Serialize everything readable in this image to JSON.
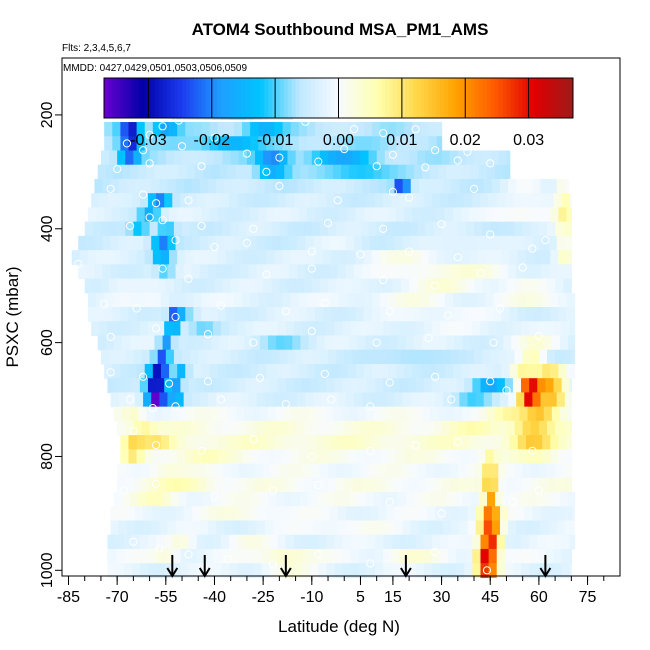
{
  "chart_data": {
    "type": "heatmap",
    "title": "ATOM4 Southbound MSA_PM1_AMS",
    "subtitle_flights": "Flts: 2,3,4,5,6,7",
    "subtitle_dates": "MMDD: 0427,0429,0501,0503,0506,0509",
    "xlabel": "Latitude (deg N)",
    "ylabel": "PSXC (mbar)",
    "xlim": [
      -87,
      85
    ],
    "ylim": [
      1010,
      100
    ],
    "x_ticks": [
      -85,
      -70,
      -55,
      -40,
      -25,
      -10,
      5,
      15,
      30,
      45,
      60,
      75
    ],
    "x_tick_labels": [
      "-85",
      "-70",
      "-55",
      "-40",
      "-25",
      "-10",
      "5",
      "15",
      "30",
      "45",
      "60",
      "75"
    ],
    "y_ticks": [
      200,
      400,
      600,
      800,
      1000
    ],
    "y_tick_labels": [
      "200",
      "400",
      "600",
      "800",
      "1000"
    ],
    "colorbar": {
      "range": [
        -0.037,
        0.037
      ],
      "ticks": [
        -0.03,
        -0.02,
        -0.01,
        0.0,
        0.01,
        0.02,
        0.03
      ],
      "tick_labels": [
        "-0.03",
        "-0.02",
        "-0.01",
        "0.00",
        "0.01",
        "0.02",
        "0.03"
      ],
      "colors": [
        "#6a00d0",
        "#0000a8",
        "#1c3cf0",
        "#1ea0ff",
        "#00c4ff",
        "#bfe8ff",
        "#f7fbff",
        "#ffffb0",
        "#ffd84a",
        "#ffa200",
        "#ff5a00",
        "#e00000",
        "#9e1a1a"
      ]
    },
    "arrow_latitudes": [
      -53,
      -43,
      -18,
      19,
      62
    ],
    "heat_rows": [
      {
        "p": 195,
        "w": 25,
        "x0": -53,
        "x1": -16,
        "base": -0.005,
        "feat": [
          [
            -30,
            8,
            -0.003
          ]
        ]
      },
      {
        "p": 225,
        "w": 25,
        "x0": -74,
        "x1": 30,
        "base": -0.006,
        "feat": [
          [
            -66,
            3,
            -0.024
          ],
          [
            -55,
            4,
            -0.012
          ],
          [
            -25,
            6,
            -0.01
          ]
        ]
      },
      {
        "p": 250,
        "w": 25,
        "x0": -74,
        "x1": 30,
        "base": -0.007,
        "feat": [
          [
            -66,
            3,
            -0.022
          ],
          [
            -35,
            8,
            -0.009
          ]
        ]
      },
      {
        "p": 275,
        "w": 25,
        "x0": -75,
        "x1": 51,
        "base": -0.006,
        "feat": [
          [
            -66,
            3,
            -0.015
          ],
          [
            -22,
            5,
            -0.015
          ],
          [
            0,
            10,
            -0.01
          ]
        ]
      },
      {
        "p": 300,
        "w": 25,
        "x0": -76,
        "x1": 51,
        "base": -0.005,
        "feat": [
          [
            -22,
            5,
            -0.012
          ],
          [
            5,
            10,
            -0.008
          ]
        ]
      },
      {
        "p": 325,
        "w": 25,
        "x0": -77,
        "x1": 69,
        "base": -0.005,
        "feat": [
          [
            18,
            2,
            -0.026
          ],
          [
            20,
            1,
            0.006
          ],
          [
            55,
            8,
            0.004
          ],
          [
            68,
            3,
            0.008
          ]
        ]
      },
      {
        "p": 350,
        "w": 25,
        "x0": -78,
        "x1": 70,
        "base": -0.004,
        "feat": [
          [
            -57,
            3,
            -0.015
          ],
          [
            60,
            8,
            0.004
          ],
          [
            68,
            3,
            0.009
          ]
        ]
      },
      {
        "p": 375,
        "w": 25,
        "x0": -79,
        "x1": 70,
        "base": -0.003,
        "feat": [
          [
            -60,
            3,
            -0.012
          ],
          [
            55,
            10,
            0.005
          ],
          [
            68,
            3,
            0.009
          ]
        ]
      },
      {
        "p": 400,
        "w": 25,
        "x0": -80,
        "x1": 70,
        "base": -0.004,
        "feat": [
          [
            -63,
            3,
            -0.009
          ],
          [
            -55,
            3,
            -0.009
          ],
          [
            68,
            3,
            0.008
          ]
        ]
      },
      {
        "p": 425,
        "w": 25,
        "x0": -82,
        "x1": 70,
        "base": -0.004,
        "feat": [
          [
            -56,
            3,
            -0.016
          ],
          [
            0,
            8,
            0.002
          ],
          [
            40,
            10,
            0.003
          ],
          [
            68,
            3,
            0.008
          ]
        ]
      },
      {
        "p": 450,
        "w": 25,
        "x0": -84,
        "x1": 70,
        "base": -0.003,
        "feat": [
          [
            -56,
            3,
            -0.012
          ],
          [
            20,
            15,
            0.004
          ],
          [
            68,
            3,
            0.008
          ]
        ]
      },
      {
        "p": 475,
        "w": 25,
        "x0": -82,
        "x1": 70,
        "base": -0.003,
        "feat": [
          [
            -55,
            3,
            -0.008
          ],
          [
            25,
            15,
            0.005
          ],
          [
            45,
            10,
            0.004
          ]
        ]
      },
      {
        "p": 500,
        "w": 25,
        "x0": -80,
        "x1": 70,
        "base": -0.003,
        "feat": [
          [
            -70,
            5,
            0.002
          ],
          [
            30,
            15,
            0.005
          ],
          [
            55,
            10,
            0.003
          ]
        ]
      },
      {
        "p": 525,
        "w": 25,
        "x0": -79,
        "x1": 71,
        "base": -0.002,
        "feat": [
          [
            -58,
            4,
            0.002
          ],
          [
            20,
            15,
            0.003
          ],
          [
            60,
            10,
            0.004
          ]
        ]
      },
      {
        "p": 550,
        "w": 25,
        "x0": -79,
        "x1": 71,
        "base": -0.003,
        "feat": [
          [
            -52,
            2,
            -0.022
          ],
          [
            -48,
            3,
            -0.006
          ],
          [
            30,
            15,
            0.003
          ]
        ]
      },
      {
        "p": 575,
        "w": 25,
        "x0": -78,
        "x1": 71,
        "base": -0.003,
        "feat": [
          [
            -53,
            2,
            -0.018
          ],
          [
            -44,
            5,
            -0.005
          ],
          [
            30,
            15,
            0.002
          ],
          [
            55,
            8,
            0.002
          ]
        ]
      },
      {
        "p": 600,
        "w": 25,
        "x0": -76,
        "x1": 71,
        "base": -0.003,
        "feat": [
          [
            -55,
            2,
            -0.016
          ],
          [
            -20,
            8,
            -0.005
          ],
          [
            60,
            8,
            0.005
          ]
        ]
      },
      {
        "p": 625,
        "w": 25,
        "x0": -75,
        "x1": 71,
        "base": -0.004,
        "feat": [
          [
            -56,
            2,
            -0.018
          ],
          [
            20,
            10,
            -0.004
          ],
          [
            58,
            4,
            0.01
          ]
        ]
      },
      {
        "p": 650,
        "w": 25,
        "x0": -74,
        "x1": 71,
        "base": -0.004,
        "feat": [
          [
            -57,
            3,
            -0.026
          ],
          [
            -50,
            2,
            -0.012
          ],
          [
            55,
            4,
            0.012
          ],
          [
            63,
            5,
            0.014
          ]
        ]
      },
      {
        "p": 675,
        "w": 25,
        "x0": -73,
        "x1": 70,
        "base": -0.004,
        "feat": [
          [
            -58,
            3,
            -0.03
          ],
          [
            -52,
            2,
            -0.015
          ],
          [
            45,
            5,
            -0.012
          ],
          [
            57,
            3,
            0.03
          ],
          [
            63,
            5,
            0.02
          ]
        ]
      },
      {
        "p": 700,
        "w": 25,
        "x0": -72,
        "x1": 70,
        "base": -0.003,
        "feat": [
          [
            -58,
            3,
            -0.034
          ],
          [
            -52,
            2,
            -0.015
          ],
          [
            40,
            6,
            -0.006
          ],
          [
            57,
            3,
            0.03
          ],
          [
            64,
            5,
            0.018
          ]
        ]
      },
      {
        "p": 725,
        "w": 25,
        "x0": -71,
        "x1": 70,
        "base": 0.0,
        "feat": [
          [
            -65,
            3,
            0.004
          ],
          [
            50,
            5,
            0.005
          ],
          [
            60,
            6,
            0.016
          ]
        ]
      },
      {
        "p": 750,
        "w": 25,
        "x0": -70,
        "x1": 70,
        "base": 0.002,
        "feat": [
          [
            -62,
            4,
            0.006
          ],
          [
            40,
            8,
            0.003
          ],
          [
            58,
            6,
            0.012
          ]
        ]
      },
      {
        "p": 775,
        "w": 25,
        "x0": -69,
        "x1": 70,
        "base": 0.003,
        "feat": [
          [
            -65,
            3,
            0.008
          ],
          [
            -58,
            5,
            0.006
          ],
          [
            58,
            6,
            0.01
          ]
        ]
      },
      {
        "p": 800,
        "w": 25,
        "x0": -69,
        "x1": 70,
        "base": 0.001,
        "feat": [
          [
            -65,
            3,
            0.007
          ],
          [
            -45,
            8,
            0.004
          ],
          [
            45,
            2,
            0.006
          ],
          [
            60,
            6,
            0.004
          ]
        ]
      },
      {
        "p": 825,
        "w": 25,
        "x0": -70,
        "x1": 70,
        "base": 0.0,
        "feat": [
          [
            45,
            2,
            0.012
          ],
          [
            -55,
            6,
            0.003
          ]
        ]
      },
      {
        "p": 850,
        "w": 25,
        "x0": -70,
        "x1": 70,
        "base": 0.001,
        "feat": [
          [
            45,
            2,
            0.016
          ],
          [
            -50,
            10,
            0.004
          ]
        ]
      },
      {
        "p": 875,
        "w": 25,
        "x0": -71,
        "x1": 71,
        "base": 0.0,
        "feat": [
          [
            45,
            2,
            0.02
          ],
          [
            -58,
            6,
            0.004
          ]
        ]
      },
      {
        "p": 900,
        "w": 25,
        "x0": -72,
        "x1": 71,
        "base": -0.001,
        "feat": [
          [
            45,
            3,
            0.024
          ],
          [
            -30,
            12,
            0.003
          ]
        ]
      },
      {
        "p": 925,
        "w": 25,
        "x0": -72,
        "x1": 71,
        "base": -0.002,
        "feat": [
          [
            45,
            3,
            0.028
          ],
          [
            0,
            15,
            0.003
          ]
        ]
      },
      {
        "p": 950,
        "w": 25,
        "x0": -73,
        "x1": 71,
        "base": -0.002,
        "feat": [
          [
            45,
            3,
            0.033
          ],
          [
            -50,
            4,
            0.004
          ],
          [
            -30,
            8,
            0.003
          ]
        ]
      },
      {
        "p": 975,
        "w": 25,
        "x0": -73,
        "x1": 70,
        "base": -0.001,
        "feat": [
          [
            44,
            3,
            0.035
          ],
          [
            -55,
            4,
            0.004
          ],
          [
            -18,
            8,
            0.006
          ],
          [
            20,
            8,
            0.004
          ]
        ]
      },
      {
        "p": 1000,
        "w": 25,
        "x0": -73,
        "x1": 70,
        "base": -0.002,
        "feat": [
          [
            44,
            3,
            0.03
          ],
          [
            -18,
            8,
            0.004
          ]
        ]
      }
    ],
    "sample_points": [
      [
        -49,
        195
      ],
      [
        -51,
        210
      ],
      [
        -56,
        220
      ],
      [
        -60,
        235
      ],
      [
        -40,
        240
      ],
      [
        -12,
        212
      ],
      [
        3,
        225
      ],
      [
        12,
        232
      ],
      [
        22,
        225
      ],
      [
        -67,
        250
      ],
      [
        -62,
        262
      ],
      [
        -50,
        255
      ],
      [
        -30,
        268
      ],
      [
        -20,
        275
      ],
      [
        0,
        260
      ],
      [
        15,
        270
      ],
      [
        28,
        262
      ],
      [
        38,
        265
      ],
      [
        -70,
        295
      ],
      [
        -60,
        285
      ],
      [
        -44,
        290
      ],
      [
        -24,
        300
      ],
      [
        -8,
        282
      ],
      [
        10,
        290
      ],
      [
        25,
        292
      ],
      [
        35,
        280
      ],
      [
        45,
        285
      ],
      [
        -72,
        330
      ],
      [
        -62,
        340
      ],
      [
        -58,
        355
      ],
      [
        -48,
        350
      ],
      [
        -20,
        325
      ],
      [
        -2,
        350
      ],
      [
        15,
        335
      ],
      [
        20,
        345
      ],
      [
        40,
        330
      ],
      [
        -60,
        380
      ],
      [
        -66,
        395
      ],
      [
        -56,
        385
      ],
      [
        -44,
        395
      ],
      [
        -28,
        400
      ],
      [
        -5,
        390
      ],
      [
        12,
        400
      ],
      [
        30,
        392
      ],
      [
        45,
        410
      ],
      [
        -52,
        420
      ],
      [
        -40,
        432
      ],
      [
        -30,
        425
      ],
      [
        -10,
        440
      ],
      [
        5,
        445
      ],
      [
        20,
        440
      ],
      [
        35,
        450
      ],
      [
        58,
        435
      ],
      [
        62,
        420
      ],
      [
        -82,
        462
      ],
      [
        -56,
        470
      ],
      [
        -48,
        488
      ],
      [
        -24,
        480
      ],
      [
        -10,
        470
      ],
      [
        12,
        490
      ],
      [
        28,
        500
      ],
      [
        42,
        478
      ],
      [
        55,
        468
      ],
      [
        -74,
        532
      ],
      [
        -64,
        540
      ],
      [
        -52,
        555
      ],
      [
        -38,
        535
      ],
      [
        -18,
        545
      ],
      [
        -6,
        530
      ],
      [
        14,
        545
      ],
      [
        32,
        552
      ],
      [
        48,
        540
      ],
      [
        -72,
        590
      ],
      [
        -58,
        575
      ],
      [
        -42,
        585
      ],
      [
        -28,
        600
      ],
      [
        -10,
        580
      ],
      [
        10,
        600
      ],
      [
        26,
        592
      ],
      [
        46,
        600
      ],
      [
        60,
        588
      ],
      [
        -72,
        652
      ],
      [
        -62,
        660
      ],
      [
        -54,
        672
      ],
      [
        -42,
        668
      ],
      [
        -26,
        662
      ],
      [
        -6,
        655
      ],
      [
        14,
        670
      ],
      [
        28,
        660
      ],
      [
        45,
        668
      ],
      [
        -66,
        700
      ],
      [
        -59,
        715
      ],
      [
        -52,
        712
      ],
      [
        -38,
        700
      ],
      [
        -18,
        708
      ],
      [
        -4,
        700
      ],
      [
        8,
        712
      ],
      [
        33,
        700
      ],
      [
        50,
        684
      ],
      [
        -65,
        755
      ],
      [
        -58,
        780
      ],
      [
        -44,
        790
      ],
      [
        -28,
        770
      ],
      [
        -10,
        800
      ],
      [
        8,
        790
      ],
      [
        22,
        780
      ],
      [
        35,
        775
      ],
      [
        58,
        790
      ],
      [
        -68,
        860
      ],
      [
        -58,
        848
      ],
      [
        -40,
        870
      ],
      [
        -22,
        860
      ],
      [
        -8,
        850
      ],
      [
        14,
        880
      ],
      [
        30,
        900
      ],
      [
        52,
        880
      ],
      [
        60,
        860
      ],
      [
        -65,
        950
      ],
      [
        -57,
        962
      ],
      [
        -48,
        972
      ],
      [
        -36,
        980
      ],
      [
        -22,
        990
      ],
      [
        -8,
        972
      ],
      [
        8,
        988
      ],
      [
        28,
        968
      ],
      [
        44,
        1000
      ]
    ]
  }
}
